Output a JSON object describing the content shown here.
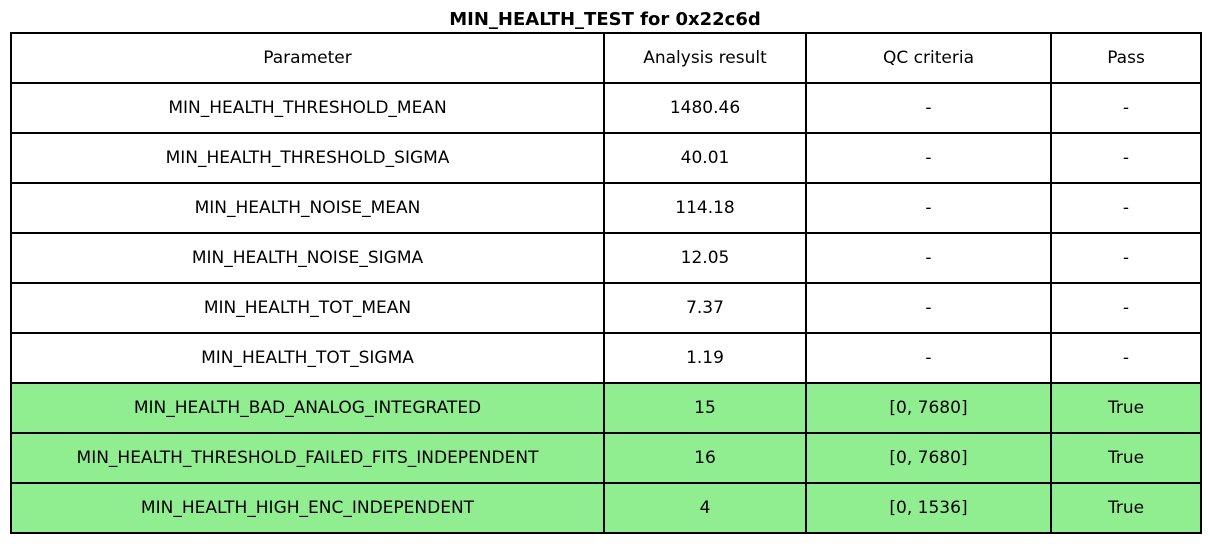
{
  "chart_data": {
    "type": "table",
    "title": "MIN_HEALTH_TEST for 0x22c6d",
    "columns": [
      "Parameter",
      "Analysis result",
      "QC criteria",
      "Pass"
    ],
    "rows": [
      [
        "MIN_HEALTH_THRESHOLD_MEAN",
        "1480.46",
        "-",
        "-"
      ],
      [
        "MIN_HEALTH_THRESHOLD_SIGMA",
        "40.01",
        "-",
        "-"
      ],
      [
        "MIN_HEALTH_NOISE_MEAN",
        "114.18",
        "-",
        "-"
      ],
      [
        "MIN_HEALTH_NOISE_SIGMA",
        "12.05",
        "-",
        "-"
      ],
      [
        "MIN_HEALTH_TOT_MEAN",
        "7.37",
        "-",
        "-"
      ],
      [
        "MIN_HEALTH_TOT_SIGMA",
        "1.19",
        "-",
        "-"
      ],
      [
        "MIN_HEALTH_BAD_ANALOG_INTEGRATED",
        "15",
        "[0, 7680]",
        "True"
      ],
      [
        "MIN_HEALTH_THRESHOLD_FAILED_FITS_INDEPENDENT",
        "16",
        "[0, 7680]",
        "True"
      ],
      [
        "MIN_HEALTH_HIGH_ENC_INDEPENDENT",
        "4",
        "[0, 1536]",
        "True"
      ]
    ],
    "highlighted_row_indices": [
      6,
      7,
      8
    ],
    "legend_position": "none",
    "grid": true
  },
  "colors": {
    "pass_row_background": "#90ee90",
    "border": "#000000",
    "background": "#ffffff",
    "text": "#000000"
  }
}
